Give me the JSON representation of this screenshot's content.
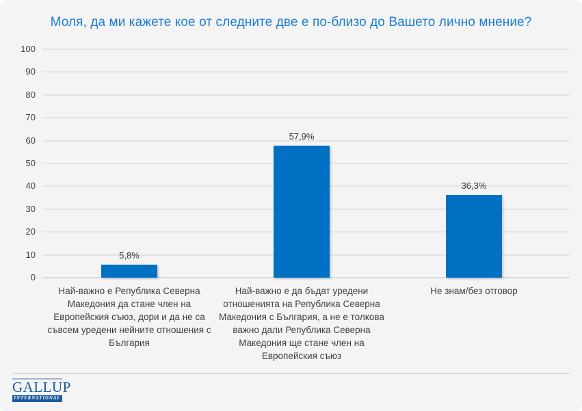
{
  "title": "Моля, да ми кажете кое от следните две е по-близо до Вашето лично мнение?",
  "chart_data": {
    "type": "bar",
    "title": "Моля, да ми кажете кое от следните две е по-близо до Вашето лично мнение?",
    "categories": [
      "Най-важно е Република Северна Македония да стане член на Европейския съюз, дори и да не са съвсем уредени нейните отношения с България",
      "Най-важно е да бъдат уредени отношенията на Република Северна Македония с България, а не е толкова важно дали Република Северна Македония ще стане член на Европейския съюз",
      "Не знам/без отговор"
    ],
    "values": [
      5.8,
      57.9,
      36.3
    ],
    "value_labels": [
      "5,8%",
      "57,9%",
      "36,3%"
    ],
    "xlabel": "",
    "ylabel": "",
    "ylim": [
      0,
      100
    ],
    "yticks": [
      100,
      90,
      80,
      70,
      60,
      50,
      40,
      30,
      20,
      10,
      0
    ],
    "grid": "horizontal",
    "legend": "none",
    "bar_color": "#0071c2"
  },
  "footer": {
    "logo_name": "GALLUP",
    "logo_subtitle": "INTERNATIONAL"
  },
  "colors": {
    "background": "#f4f4f4",
    "title": "#1b7cd4",
    "bar": "#0071c2",
    "gridline": "#e3e3e3",
    "baseline": "#d9d9d9",
    "text": "#3e3e3e",
    "logo_blue": "#1a5a9e"
  }
}
